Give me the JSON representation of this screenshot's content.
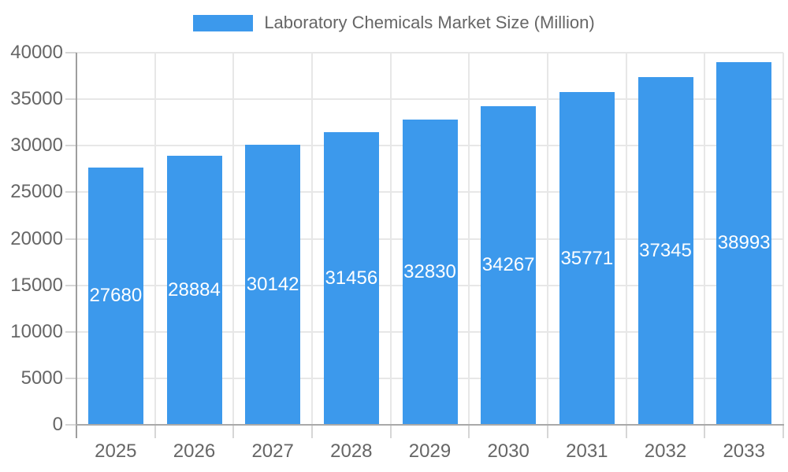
{
  "legend": {
    "swatch_color": "#3C99EC",
    "label": "Laboratory Chemicals Market Size (Million)"
  },
  "chart_data": {
    "type": "bar",
    "title": "Laboratory Chemicals Market Size (Million)",
    "series_name": "Laboratory Chemicals Market Size (Million)",
    "categories": [
      "2025",
      "2026",
      "2027",
      "2028",
      "2029",
      "2030",
      "2031",
      "2032",
      "2033"
    ],
    "values": [
      27680,
      28884,
      30142,
      31456,
      32830,
      34267,
      35771,
      37345,
      38993
    ],
    "xlabel": "",
    "ylabel": "",
    "ylim": [
      0,
      40000
    ],
    "ytick_step": 5000,
    "yticks": [
      0,
      5000,
      10000,
      15000,
      20000,
      25000,
      30000,
      35000,
      40000
    ],
    "grid": true,
    "legend_position": "top",
    "bar_color": "#3C99EC",
    "bar_label_color": "#FFFFFF",
    "axis_text_color": "#666666",
    "axis_line_color": "#A9A9A9",
    "grid_color": "#E7E7E7",
    "tick_color": "#D6D6D6",
    "background_color": "#FFFFFF"
  }
}
